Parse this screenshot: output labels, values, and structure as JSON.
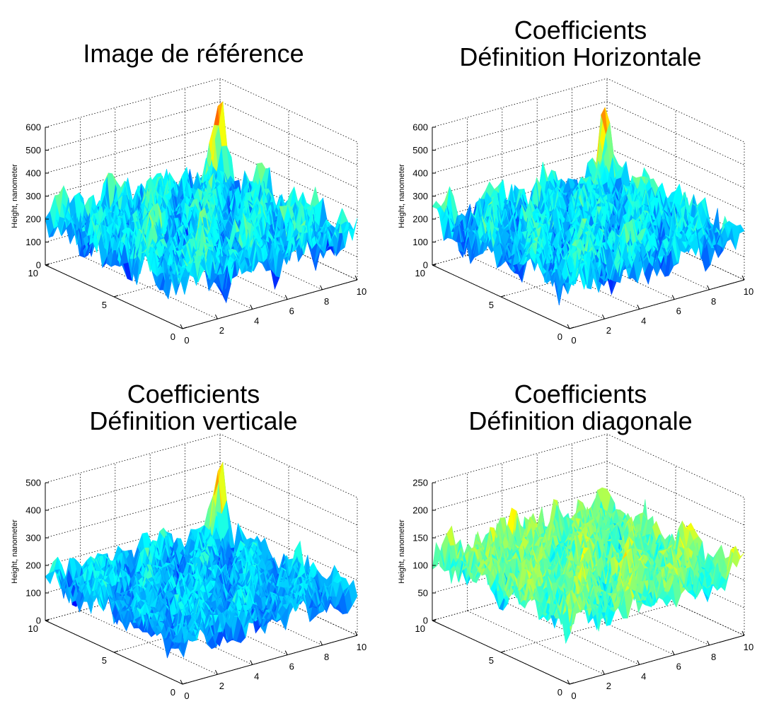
{
  "chart_data": [
    {
      "type": "surface",
      "title_lines": [
        "Image de référence"
      ],
      "zlabel": "Height, nanometer",
      "zticks": [
        0,
        100,
        200,
        300,
        400,
        500,
        600
      ],
      "zlim": [
        0,
        600
      ],
      "xticks": [
        0,
        2,
        4,
        6,
        8,
        10
      ],
      "xlim": [
        0,
        10
      ],
      "yticks": [
        0,
        5,
        10
      ],
      "ylim": [
        0,
        10
      ],
      "grid": true,
      "colormap": "jet",
      "surface": {
        "base": 200,
        "amp": 120,
        "min": 60,
        "max": 520,
        "peak": {
          "x": 9.6,
          "y": 9.5,
          "z": 510
        }
      }
    },
    {
      "type": "surface",
      "title_lines": [
        "Coefficients",
        "Définition Horizontale"
      ],
      "zlabel": "Height, nanometer",
      "zticks": [
        0,
        100,
        200,
        300,
        400,
        500,
        600
      ],
      "zlim": [
        0,
        600
      ],
      "xticks": [
        0,
        2,
        4,
        6,
        8,
        10
      ],
      "xlim": [
        0,
        10
      ],
      "yticks": [
        0,
        5,
        10
      ],
      "ylim": [
        0,
        10
      ],
      "grid": true,
      "colormap": "jet",
      "surface": {
        "base": 195,
        "amp": 115,
        "min": 60,
        "max": 510,
        "peak": {
          "x": 9.6,
          "y": 9.5,
          "z": 490
        }
      }
    },
    {
      "type": "surface",
      "title_lines": [
        "Coefficients",
        "Définition verticale"
      ],
      "zlabel": "Height, nanometer",
      "zticks": [
        0,
        100,
        200,
        300,
        400,
        500
      ],
      "zlim": [
        0,
        500
      ],
      "xticks": [
        0,
        2,
        4,
        6,
        8,
        10
      ],
      "xlim": [
        0,
        10
      ],
      "yticks": [
        0,
        5,
        10
      ],
      "ylim": [
        0,
        10
      ],
      "grid": true,
      "colormap": "jet",
      "surface": {
        "base": 150,
        "amp": 80,
        "min": 50,
        "max": 480,
        "peak": {
          "x": 9.6,
          "y": 9.5,
          "z": 470
        }
      }
    },
    {
      "type": "surface",
      "title_lines": [
        "Coefficients",
        "Définition diagonale"
      ],
      "zlabel": "Height, nanometer",
      "zticks": [
        0,
        50,
        100,
        150,
        200,
        250
      ],
      "zlim": [
        0,
        250
      ],
      "xticks": [
        0,
        2,
        4,
        6,
        8,
        10
      ],
      "xlim": [
        0,
        10
      ],
      "yticks": [
        0,
        5,
        10
      ],
      "ylim": [
        0,
        10
      ],
      "grid": true,
      "colormap": "jet",
      "surface": {
        "base": 115,
        "amp": 45,
        "min": 30,
        "max": 230,
        "peak": {
          "x": 4.0,
          "y": 9.0,
          "z": 210
        }
      }
    }
  ]
}
